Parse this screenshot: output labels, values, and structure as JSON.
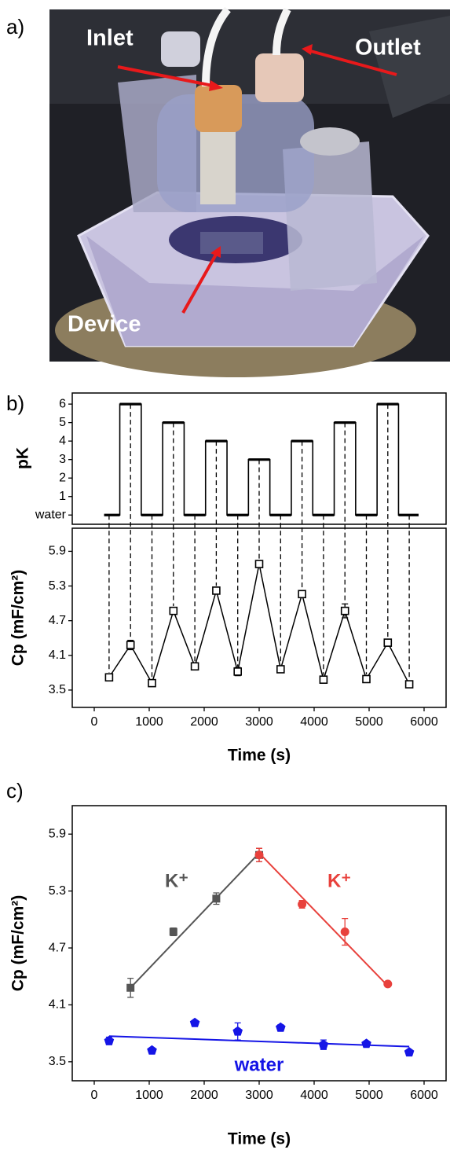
{
  "photo": {
    "label": "a)",
    "inlet": "Inlet",
    "outlet": "Outlet",
    "device": "Device"
  },
  "chart_data": [
    {
      "type": "line",
      "label": "b)",
      "ylabel": "pK",
      "color": "#000000",
      "xlim": [
        -400,
        6400
      ],
      "ylim": [
        -0.5,
        6.6
      ],
      "yticks": [
        {
          "value": 0,
          "label": "water"
        },
        1,
        2,
        3,
        4,
        5,
        6
      ],
      "x": [
        180,
        465,
        465,
        855,
        855,
        1245,
        1245,
        1635,
        1635,
        2025,
        2025,
        2415,
        2415,
        2805,
        2805,
        3195,
        3195,
        3585,
        3585,
        3975,
        3975,
        4365,
        4365,
        4755,
        4755,
        5145,
        5145,
        5535,
        5535,
        5900
      ],
      "values": [
        0,
        0,
        6,
        6,
        0,
        0,
        5,
        5,
        0,
        0,
        4,
        4,
        0,
        0,
        3,
        3,
        0,
        0,
        4,
        4,
        0,
        0,
        5,
        5,
        0,
        0,
        6,
        6,
        0,
        0
      ]
    },
    {
      "type": "scatter",
      "xlabel": "Time (s)",
      "ylabel": "Cp (mF/cm²)",
      "color": "#000000",
      "marker": "square",
      "open": true,
      "connect": true,
      "drop_lines": true,
      "xlim": [
        -400,
        6400
      ],
      "ylim": [
        3.2,
        6.3
      ],
      "xticks": [
        0,
        1000,
        2000,
        3000,
        4000,
        5000,
        6000
      ],
      "yticks": [
        3.5,
        4.1,
        4.7,
        5.3,
        5.9
      ],
      "x": [
        270,
        660,
        1050,
        1440,
        1830,
        2220,
        2610,
        3000,
        3390,
        3780,
        4170,
        4560,
        4950,
        5340,
        5730
      ],
      "values": [
        3.72,
        4.28,
        3.62,
        4.87,
        3.91,
        5.22,
        3.82,
        5.68,
        3.86,
        5.16,
        3.68,
        4.87,
        3.69,
        4.32,
        3.6
      ],
      "errors": [
        0.03,
        0.08,
        0.03,
        0.04,
        0.03,
        0.05,
        0.07,
        0.06,
        0.03,
        0.04,
        0.04,
        0.12,
        0.03,
        0.03,
        0.03
      ]
    },
    {
      "type": "scatter",
      "label": "c)",
      "xlabel": "Time (s)",
      "ylabel": "Cp (mF/cm²)",
      "xlim": [
        -400,
        6400
      ],
      "ylim": [
        3.3,
        6.2
      ],
      "xticks": [
        0,
        1000,
        2000,
        3000,
        4000,
        5000,
        6000
      ],
      "yticks": [
        3.5,
        4.1,
        4.7,
        5.3,
        5.9
      ],
      "series": [
        {
          "name": "K⁺",
          "color": "#555555",
          "marker": "square",
          "x": [
            660,
            1440,
            2220,
            3000
          ],
          "values": [
            4.28,
            4.87,
            5.22,
            5.68
          ],
          "errors": [
            0.1,
            0.04,
            0.06,
            0.07
          ],
          "fit_x": [
            660,
            3000
          ],
          "fit_values": [
            4.28,
            5.7
          ]
        },
        {
          "name": "K⁺",
          "color": "#e8413c",
          "marker": "circle",
          "x": [
            3000,
            3780,
            4560,
            5340
          ],
          "values": [
            5.68,
            5.16,
            4.87,
            4.32
          ],
          "errors": [
            0.07,
            0.04,
            0.14,
            0.02
          ],
          "fit_x": [
            3000,
            5340
          ],
          "fit_values": [
            5.7,
            4.3
          ]
        },
        {
          "name": "water",
          "color": "#1515e6",
          "marker": "pentagon",
          "x": [
            270,
            1050,
            1830,
            2610,
            3390,
            4170,
            4950,
            5730
          ],
          "values": [
            3.72,
            3.62,
            3.91,
            3.82,
            3.86,
            3.68,
            3.69,
            3.6
          ],
          "errors": [
            0.04,
            0.02,
            0.02,
            0.09,
            0.03,
            0.05,
            0.02,
            0.02
          ],
          "fit_x": [
            270,
            5730
          ],
          "fit_values": [
            3.77,
            3.66
          ]
        }
      ]
    }
  ]
}
